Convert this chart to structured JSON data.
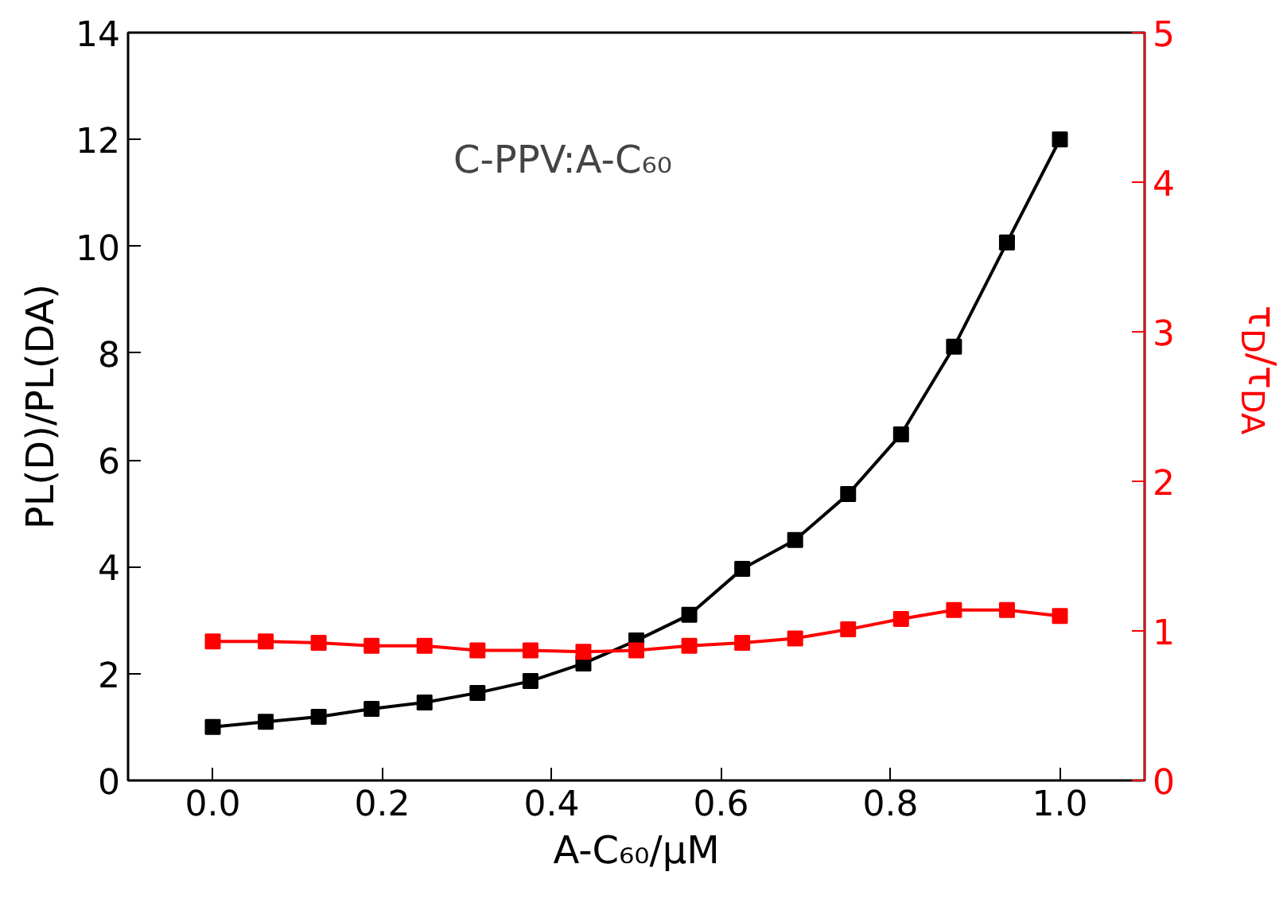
{
  "chart_data": {
    "type": "line",
    "x": [
      0.0,
      0.0625,
      0.125,
      0.1875,
      0.25,
      0.3125,
      0.375,
      0.4375,
      0.5,
      0.5625,
      0.625,
      0.6875,
      0.75,
      0.8125,
      0.875,
      0.9375,
      1.0
    ],
    "series": [
      {
        "color": "#000000",
        "values": [
          1.0,
          1.1,
          1.19,
          1.34,
          1.46,
          1.64,
          1.86,
          2.19,
          2.62,
          3.1,
          3.96,
          4.5,
          5.36,
          6.48,
          8.12,
          10.07,
          12.0
        ]
      },
      {
        "color": "#ff0000",
        "axis": "y2",
        "values": [
          0.93,
          0.93,
          0.92,
          0.9,
          0.9,
          0.87,
          0.87,
          0.86,
          0.87,
          0.9,
          0.92,
          0.95,
          1.01,
          1.08,
          1.14,
          1.14,
          1.1
        ]
      }
    ],
    "xlabel": "A-C₆₀/μM",
    "ylabel": "PL(D)/PL(DA)",
    "y2label": "τ$_{D}$/τ$_{DA}$",
    "annotations": [
      "C-PPV:A-C₆₀"
    ],
    "xlim": [
      -0.1,
      1.1
    ],
    "xticks": [
      {
        "value": 0.0,
        "label": "0.0"
      },
      {
        "value": 0.2,
        "label": "0.2"
      },
      {
        "value": 0.4,
        "label": "0.4"
      },
      {
        "value": 0.6,
        "label": "0.6"
      },
      {
        "value": 0.8,
        "label": "0.8"
      },
      {
        "value": 1.0,
        "label": "1.0"
      }
    ],
    "ylim": [
      0,
      14
    ],
    "yticks": [
      0,
      2,
      4,
      6,
      8,
      10,
      12,
      14
    ],
    "y2lim": [
      0,
      5
    ],
    "y2ticks": [
      0,
      1,
      2,
      3,
      4,
      5
    ],
    "marker": "square",
    "line_style": "solid",
    "grid": false
  }
}
